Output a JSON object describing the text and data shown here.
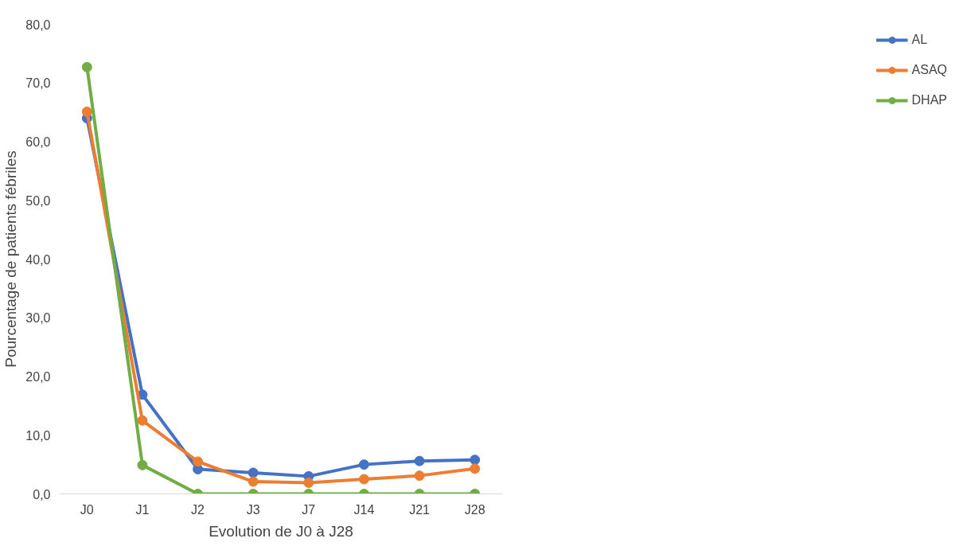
{
  "chart_data": {
    "type": "line",
    "xlabel": "Evolution de J0 à J28",
    "ylabel": "Pourcentage de patients fébriles",
    "categories": [
      "J0",
      "J1",
      "J2",
      "J3",
      "J7",
      "J14",
      "J21",
      "J28"
    ],
    "series": [
      {
        "name": "AL",
        "color": "#4472c4",
        "values": [
          64.0,
          16.9,
          4.2,
          3.6,
          3.0,
          5.0,
          5.6,
          5.8
        ]
      },
      {
        "name": "ASAQ",
        "color": "#ed7d31",
        "values": [
          65.1,
          12.5,
          5.5,
          2.1,
          1.9,
          2.5,
          3.1,
          4.3
        ]
      },
      {
        "name": "DHAP",
        "color": "#70ad47",
        "values": [
          72.7,
          4.9,
          0,
          0,
          0,
          0,
          0,
          0
        ]
      }
    ],
    "ylim": [
      0,
      80
    ],
    "yticks": [
      {
        "value": 0,
        "label": "0,0"
      },
      {
        "value": 10,
        "label": "10,0"
      },
      {
        "value": 20,
        "label": "20,0"
      },
      {
        "value": 30,
        "label": "30,0"
      },
      {
        "value": 40,
        "label": "40,0"
      },
      {
        "value": 50,
        "label": "50,0"
      },
      {
        "value": 60,
        "label": "60,0"
      },
      {
        "value": 70,
        "label": "70,0"
      },
      {
        "value": 80,
        "label": "80,0"
      }
    ],
    "grid": false,
    "legend": "right",
    "marker": "circle",
    "line_style": "solid"
  }
}
